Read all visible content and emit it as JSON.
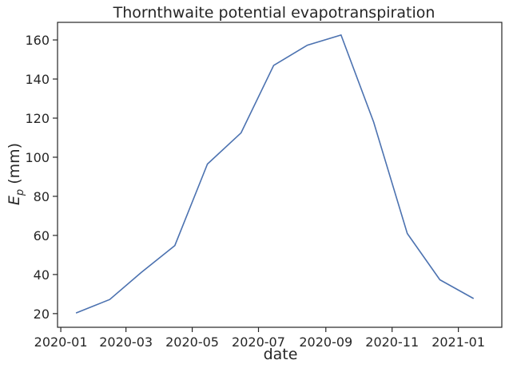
{
  "chart_data": {
    "type": "line",
    "title": "Thornthwaite potential evapotranspiration",
    "xlabel": "date",
    "ylabel": "E_p (mm)",
    "ylabel_main": "E",
    "ylabel_sub": "p",
    "ylabel_unit": " (mm)",
    "xlim": [
      "2019-12-29",
      "2021-02-10"
    ],
    "ylim": [
      13,
      169
    ],
    "grid": false,
    "line_color": "#4c72b0",
    "x_ticks": [
      "2020-01",
      "2020-03",
      "2020-05",
      "2020-07",
      "2020-09",
      "2020-11",
      "2021-01"
    ],
    "y_ticks": [
      20,
      40,
      60,
      80,
      100,
      120,
      140,
      160
    ],
    "series": [
      {
        "x": [
          "2020-01-15",
          "2020-02-15",
          "2020-03-15",
          "2020-04-15",
          "2020-05-15",
          "2020-06-15",
          "2020-07-15",
          "2020-08-15",
          "2020-09-15",
          "2020-10-15",
          "2020-11-15",
          "2020-12-15",
          "2021-01-15"
        ],
        "values": [
          20.3,
          27.2,
          41.0,
          54.8,
          96.5,
          112.5,
          147.0,
          157.3,
          162.5,
          118.0,
          61.0,
          37.3,
          27.7
        ]
      }
    ]
  }
}
